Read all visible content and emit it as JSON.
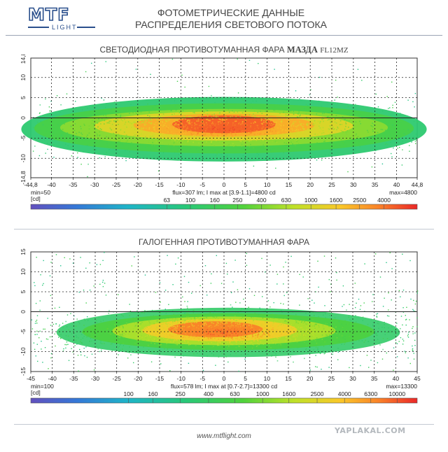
{
  "logo": {
    "brand": "MTF",
    "sub": "LIGHT"
  },
  "header": {
    "line1": "ФОТОМЕТРИЧЕСКИЕ ДАННЫЕ",
    "line2": "РАСПРЕДЕЛЕНИЯ СВЕТОВОГО ПОТОКА"
  },
  "footer": {
    "url": "www.mtflight.com"
  },
  "watermark": "YAPLAKAL.COM",
  "chart_data": [
    {
      "type": "heatmap",
      "title_main": "СВЕТОДИОДНАЯ ПРОТИВОТУМАННАЯ ФАРА",
      "title_brand": "МАЗДА",
      "title_model": "FL12MZ",
      "x_ticks": [
        "-44,8",
        "-40",
        "-35",
        "-30",
        "-25",
        "-20",
        "-15",
        "-10",
        "-5",
        "0",
        "5",
        "10",
        "15",
        "20",
        "25",
        "30",
        "35",
        "40",
        "44,8"
      ],
      "y_ticks": [
        "14,8",
        "10",
        "5",
        "0",
        "-5",
        "-10",
        "-14,8"
      ],
      "xlim": [
        -44.8,
        44.8
      ],
      "ylim": [
        -14.8,
        14.8
      ],
      "min_label": "min=50",
      "unit_label": "[cd]",
      "max_label": "max=4800",
      "flux_label": "flux=307 lm; I max at [3.9-1.1]=4800 cd",
      "max_intensity_cd": 4800,
      "peak": [
        3.9,
        -1.1
      ],
      "colorbar_ticks": [
        "63",
        "100",
        "160",
        "250",
        "400",
        "630",
        "1000",
        "1600",
        "2500",
        "4000"
      ],
      "grid": true
    },
    {
      "type": "heatmap",
      "title_main": "ГАЛОГЕННАЯ ПРОТИВОТУМАННАЯ ФАРА",
      "x_ticks": [
        "-45",
        "-40",
        "-35",
        "-30",
        "-25",
        "-20",
        "-15",
        "-10",
        "-5",
        "0",
        "5",
        "10",
        "15",
        "20",
        "25",
        "30",
        "35",
        "40",
        "45"
      ],
      "y_ticks": [
        "15",
        "10",
        "5",
        "0",
        "-5",
        "-10",
        "-15"
      ],
      "xlim": [
        -45,
        45
      ],
      "ylim": [
        -15,
        15
      ],
      "min_label": "min=100",
      "unit_label": "[cd]",
      "max_label": "max=13300",
      "flux_label": "flux=578 lm; I max at [0.7-2.7]=13300 cd",
      "max_intensity_cd": 13300,
      "peak": [
        0.7,
        -2.7
      ],
      "colorbar_ticks": [
        "100",
        "160",
        "250",
        "400",
        "630",
        "1000",
        "1600",
        "2500",
        "4000",
        "6300",
        "10000"
      ],
      "grid": true
    }
  ]
}
